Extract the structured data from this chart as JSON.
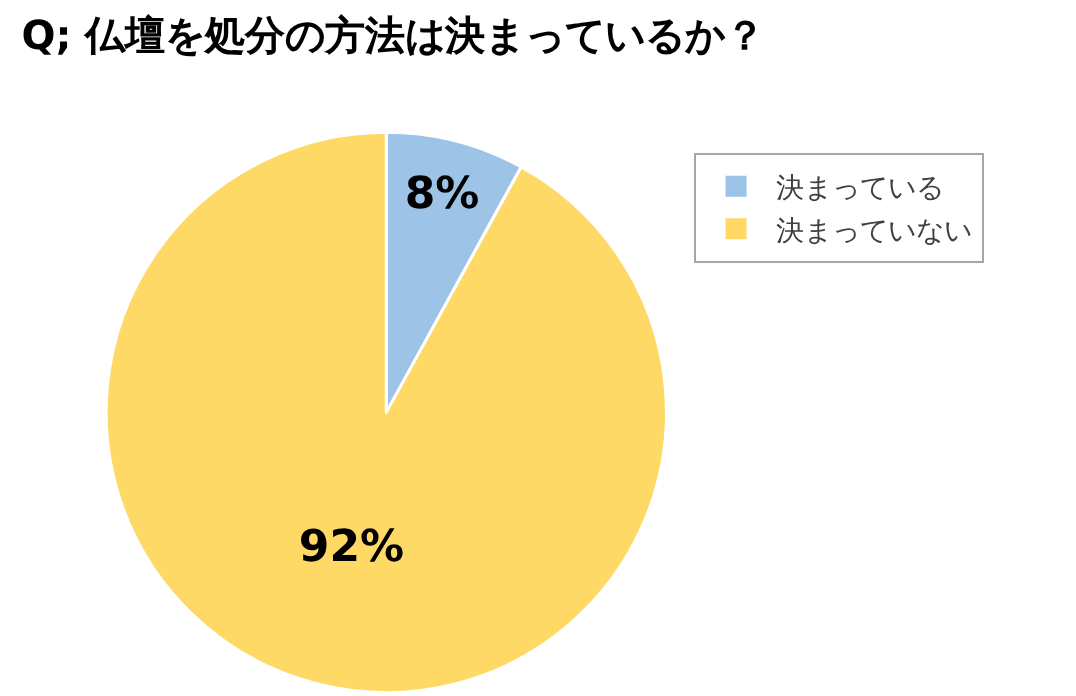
{
  "chart_data": {
    "type": "pie",
    "title": "Q; 仏壇を処分の方法は決まっているか？",
    "categories": [
      "決まっている",
      "決まっていない"
    ],
    "values": [
      8,
      92
    ],
    "value_labels": [
      "8%",
      "92%"
    ],
    "colors": [
      "#9dc3e6",
      "#ffd966"
    ],
    "legend": "right"
  }
}
